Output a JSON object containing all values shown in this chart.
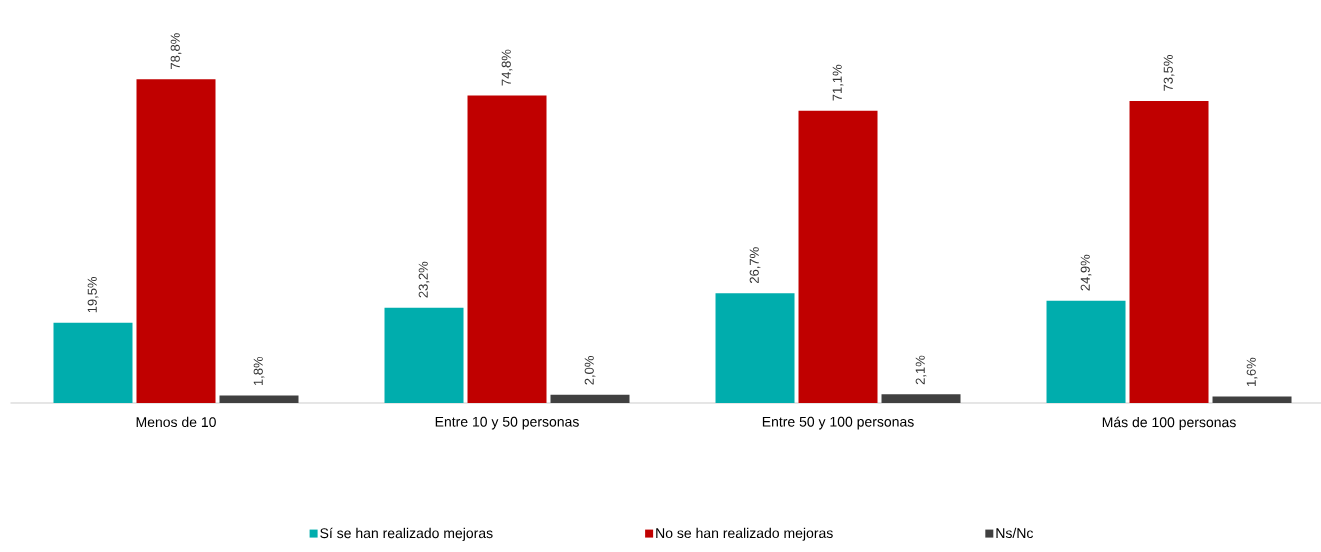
{
  "chart_data": {
    "type": "bar",
    "categories": [
      "Menos de 10",
      "Entre 10 y 50 personas",
      "Entre 50 y 100 personas",
      "Más de 100 personas"
    ],
    "series": [
      {
        "name": "Sí se han realizado mejoras",
        "color": "#00adad",
        "values": [
          19.5,
          23.2,
          26.7,
          24.9
        ],
        "value_labels": [
          "19,5%",
          "23,2%",
          "26,7%",
          "24,9%"
        ]
      },
      {
        "name": "No se han realizado mejoras",
        "color": "#c00000",
        "values": [
          78.8,
          74.8,
          71.1,
          73.5
        ],
        "value_labels": [
          "78,8%",
          "74,8%",
          "71,1%",
          "73,5%"
        ]
      },
      {
        "name": "Ns/Nc",
        "color": "#404040",
        "values": [
          1.8,
          2.0,
          2.1,
          1.6
        ],
        "value_labels": [
          "1,8%",
          "2,0%",
          "2,1%",
          "1,6%"
        ]
      }
    ],
    "legend": "bottom"
  }
}
